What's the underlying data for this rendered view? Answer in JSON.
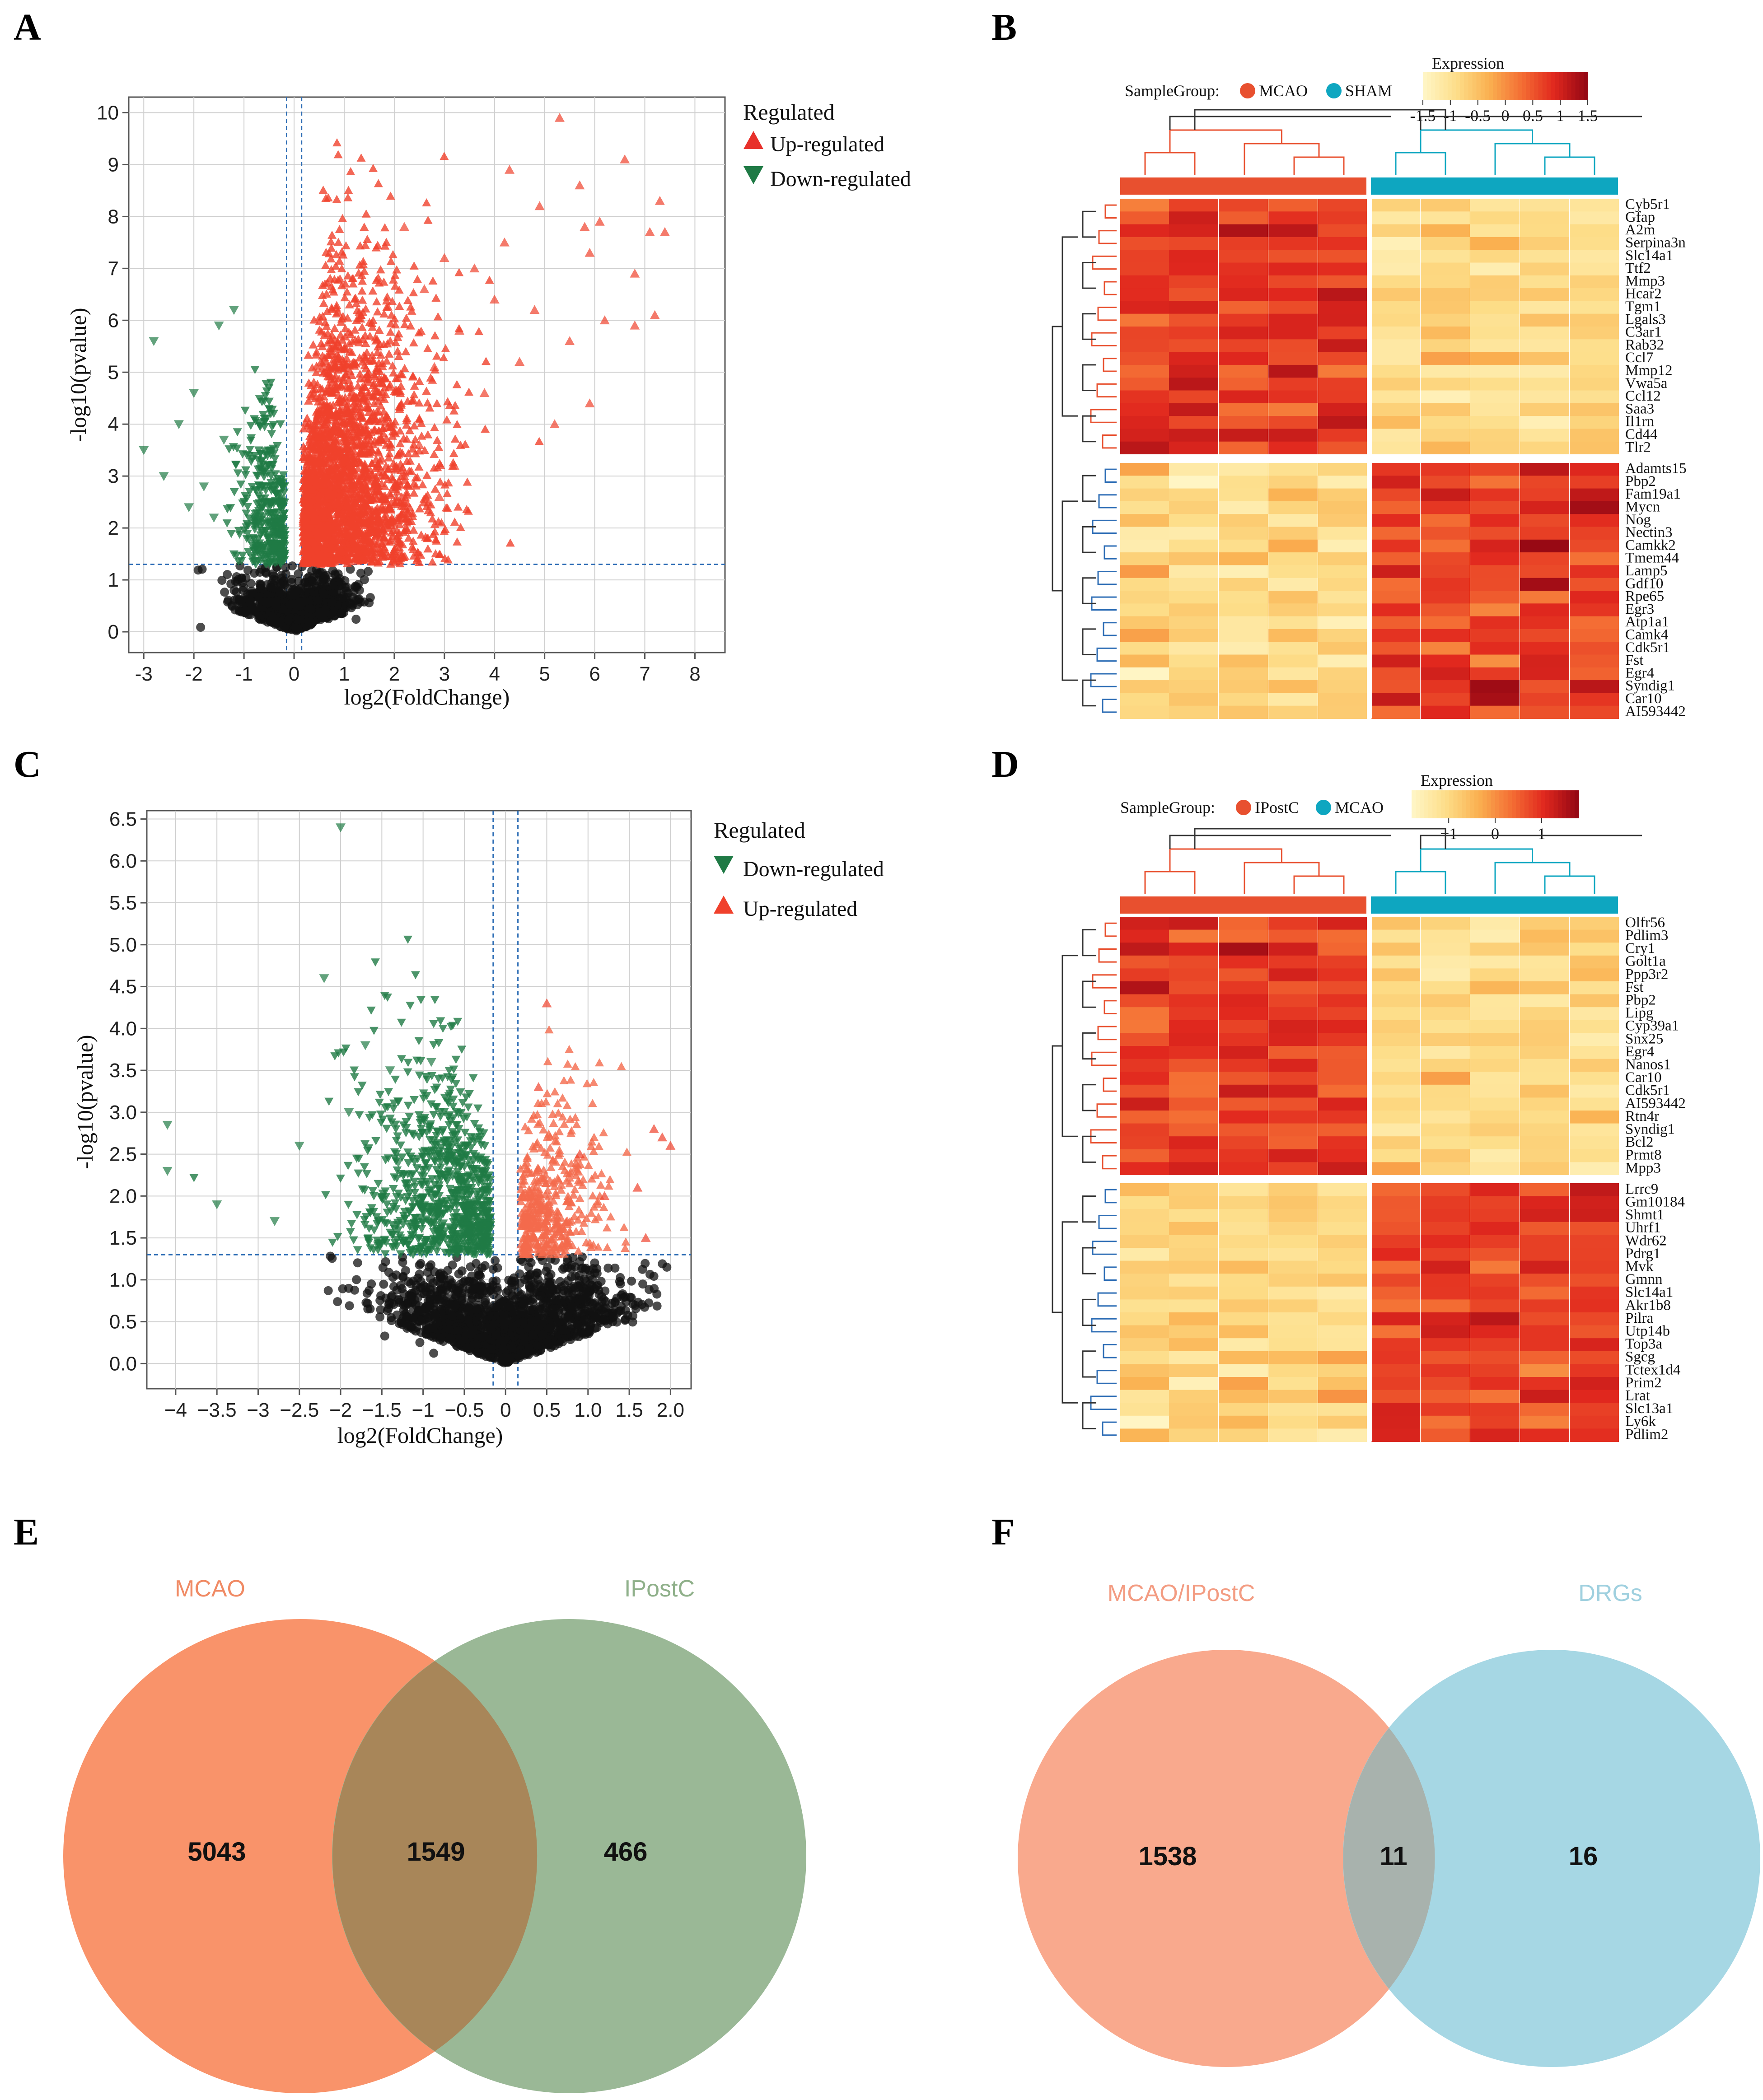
{
  "panels": {
    "A": "A",
    "B": "B",
    "C": "C",
    "D": "D",
    "E": "E",
    "F": "F"
  },
  "chart_data": [
    {
      "id": "A",
      "type": "scatter",
      "title": "",
      "xlabel": "log2(FoldChange)",
      "ylabel": "-log10(pvalue)",
      "xlim": [
        -3.3,
        8.6
      ],
      "ylim": [
        -0.4,
        10.3
      ],
      "xticks": [
        "-3",
        "-2",
        "-1",
        "0",
        "1",
        "2",
        "3",
        "4",
        "5",
        "6",
        "7",
        "8"
      ],
      "yticks": [
        "0",
        "1",
        "2",
        "3",
        "4",
        "5",
        "6",
        "7",
        "8",
        "9",
        "10"
      ],
      "legend_title": "Regulated",
      "legend": [
        {
          "label": "Up-regulated",
          "color": "#e8312b",
          "shape": "triangle-up"
        },
        {
          "label": "Down-regulated",
          "color": "#1f7a45",
          "shape": "triangle-down"
        }
      ],
      "thresholds": {
        "x": [
          -0.15,
          0.15
        ],
        "y": 1.3
      },
      "series": [
        {
          "name": "Up-regulated",
          "color": "#f0412c",
          "points": [
            [
              5.3,
              9.9
            ],
            [
              6.6,
              9.1
            ],
            [
              4.3,
              8.9
            ],
            [
              5.7,
              8.6
            ],
            [
              7.3,
              8.3
            ],
            [
              4.9,
              8.2
            ],
            [
              6.1,
              7.9
            ],
            [
              7.4,
              7.7
            ],
            [
              7.1,
              7.7
            ],
            [
              5.8,
              7.8
            ],
            [
              4.2,
              7.5
            ],
            [
              5.9,
              7.3
            ],
            [
              6.8,
              6.9
            ],
            [
              7.2,
              6.1
            ],
            [
              6.2,
              6.0
            ],
            [
              6.8,
              5.9
            ],
            [
              5.5,
              5.6
            ],
            [
              5.9,
              4.4
            ],
            [
              5.2,
              4.0
            ],
            [
              3.0,
              7.2
            ],
            [
              3.6,
              7.0
            ],
            [
              2.6,
              6.6
            ],
            [
              4.0,
              6.4
            ],
            [
              3.3,
              5.8
            ],
            [
              4.8,
              6.2
            ],
            [
              2.2,
              7.8
            ],
            [
              2.8,
              5.1
            ],
            [
              3.8,
              4.6
            ],
            [
              4.5,
              5.2
            ],
            [
              2.5,
              3.6
            ],
            [
              3.2,
              3.2
            ],
            [
              2.9,
              2.6
            ]
          ]
        },
        {
          "name": "Down-regulated",
          "color": "#1f7a45",
          "points": [
            [
              -2.8,
              5.6
            ],
            [
              -1.2,
              6.2
            ],
            [
              -3.0,
              3.5
            ],
            [
              -2.3,
              4.0
            ],
            [
              -1.5,
              5.9
            ],
            [
              -2.0,
              4.6
            ],
            [
              -2.6,
              3.0
            ],
            [
              -1.8,
              2.8
            ],
            [
              -1.6,
              2.2
            ],
            [
              -2.1,
              2.4
            ],
            [
              -1.4,
              3.7
            ]
          ]
        }
      ]
    },
    {
      "id": "C",
      "type": "scatter",
      "title": "",
      "xlabel": "log2(FoldChange)",
      "ylabel": "-log10(pvalue)",
      "xlim": [
        -4.35,
        2.25
      ],
      "ylim": [
        -0.3,
        6.6
      ],
      "xticks": [
        "−4",
        "−3.5",
        "−3",
        "−2.5",
        "−2",
        "−1.5",
        "−1",
        "−0.5",
        "0",
        "0.5",
        "1.0",
        "1.5",
        "2.0"
      ],
      "xtick_values": [
        -4,
        -3.5,
        -3,
        -2.5,
        -2,
        -1.5,
        -1,
        -0.5,
        0,
        0.5,
        1.0,
        1.5,
        2.0
      ],
      "yticks": [
        "0.0",
        "0.5",
        "1.0",
        "1.5",
        "2.0",
        "2.5",
        "3.0",
        "3.5",
        "4.0",
        "4.5",
        "5.0",
        "5.5",
        "6.0",
        "6.5"
      ],
      "legend_title": "Regulated",
      "legend": [
        {
          "label": "Down-regulated",
          "color": "#1f7a45",
          "shape": "triangle-down"
        },
        {
          "label": "Up-regulated",
          "color": "#f0412c",
          "shape": "triangle-up"
        }
      ],
      "thresholds": {
        "x": [
          -0.15,
          0.15
        ],
        "y": 1.3
      },
      "series": [
        {
          "name": "Down-regulated",
          "color": "#1f7a45",
          "points": [
            [
              -2.0,
              6.4
            ],
            [
              -2.2,
              4.6
            ],
            [
              -4.1,
              2.85
            ],
            [
              -4.1,
              2.3
            ],
            [
              -3.5,
              1.9
            ],
            [
              -2.8,
              1.7
            ],
            [
              -1.7,
              3.8
            ],
            [
              -1.4,
              3.5
            ],
            [
              -2.5,
              2.6
            ],
            [
              -1.9,
              3.0
            ],
            [
              -0.9,
              3.6
            ],
            [
              -1.3,
              2.4
            ]
          ]
        },
        {
          "name": "Up-regulated",
          "color": "#f0412c",
          "points": [
            [
              0.5,
              4.3
            ],
            [
              1.9,
              2.7
            ],
            [
              2.0,
              2.6
            ],
            [
              1.8,
              2.8
            ],
            [
              1.6,
              2.1
            ],
            [
              0.4,
              3.3
            ],
            [
              1.2,
              2.0
            ],
            [
              0.9,
              2.5
            ],
            [
              1.7,
              1.5
            ]
          ]
        }
      ]
    },
    {
      "id": "B",
      "type": "heatmap",
      "sample_group_label": "SampleGroup:",
      "groups": [
        {
          "name": "MCAO",
          "color": "#e8502f"
        },
        {
          "name": "SHAM",
          "color": "#0ea6c0"
        }
      ],
      "colorbar_title": "Expression",
      "colorbar_ticks": [
        "-1.5",
        "-1",
        "-0.5",
        "0",
        "0.5",
        "1",
        "1.5"
      ],
      "colorbar_range": [
        -1.5,
        1.5
      ],
      "genes_top": [
        "Cyb5r1",
        "Gfap",
        "A2m",
        "Serpina3n",
        "Slc14a1",
        "Ttf2",
        "Mmp3",
        "Hcar2",
        "Tgm1",
        "Lgals3",
        "C3ar1",
        "Rab32",
        "Ccl7",
        "Mmp12",
        "Vwa5a",
        "Ccl12",
        "Saa3",
        "Il1rn",
        "Cd44",
        "Tlr2"
      ],
      "genes_bottom": [
        "Adamts15",
        "Pbp2",
        "Fam19a1",
        "Mycn",
        "Nog",
        "Nectin3",
        "Camkk2",
        "Tmem44",
        "Lamp5",
        "Gdf10",
        "Rpe65",
        "Egr3",
        "Atp1a1",
        "Camk4",
        "Cdk5r1",
        "Fst",
        "Egr4",
        "Syndig1",
        "Car10",
        "AI593442"
      ]
    },
    {
      "id": "D",
      "type": "heatmap",
      "sample_group_label": "SampleGroup:",
      "groups": [
        {
          "name": "IPostC",
          "color": "#e8502f"
        },
        {
          "name": "MCAO",
          "color": "#0ea6c0"
        }
      ],
      "colorbar_title": "Expression",
      "colorbar_ticks": [
        "−1",
        "0",
        "1"
      ],
      "colorbar_range": [
        -1.8,
        1.8
      ],
      "genes_top": [
        "Olfr56",
        "Pdlim3",
        "Cry1",
        "Golt1a",
        "Ppp3r2",
        "Fst",
        "Pbp2",
        "Lipg",
        "Cyp39a1",
        "Snx25",
        "Egr4",
        "Nanos1",
        "Car10",
        "Cdk5r1",
        "AI593442",
        "Rtn4r",
        "Syndig1",
        "Bcl2",
        "Prmt8",
        "Mpp3"
      ],
      "genes_bottom": [
        "Lrrc9",
        "Gm10184",
        "Shmt1",
        "Uhrf1",
        "Wdr62",
        "Pdrg1",
        "Mvk",
        "Gmnn",
        "Slc14a1",
        "Akr1b8",
        "Pilra",
        "Utp14b",
        "Top3a",
        "Sgcg",
        "Tctex1d4",
        "Prim2",
        "Lrat",
        "Slc13a1",
        "Ly6k",
        "Pdlim2"
      ]
    }
  ],
  "venn_E": {
    "left_label": "MCAO",
    "right_label": "IPostC",
    "left_only": "5043",
    "overlap": "1549",
    "right_only": "466",
    "colors": {
      "left": "#f9936a",
      "right": "#9ab896",
      "overlap": "#a88659"
    }
  },
  "venn_F": {
    "left_label": "MCAO/IPostC",
    "right_label": "DRGs",
    "left_only": "1538",
    "overlap": "11",
    "right_only": "16",
    "colors": {
      "left": "#f9a98d",
      "right": "#a6d7e4",
      "overlap": "#a8b2ad"
    }
  }
}
